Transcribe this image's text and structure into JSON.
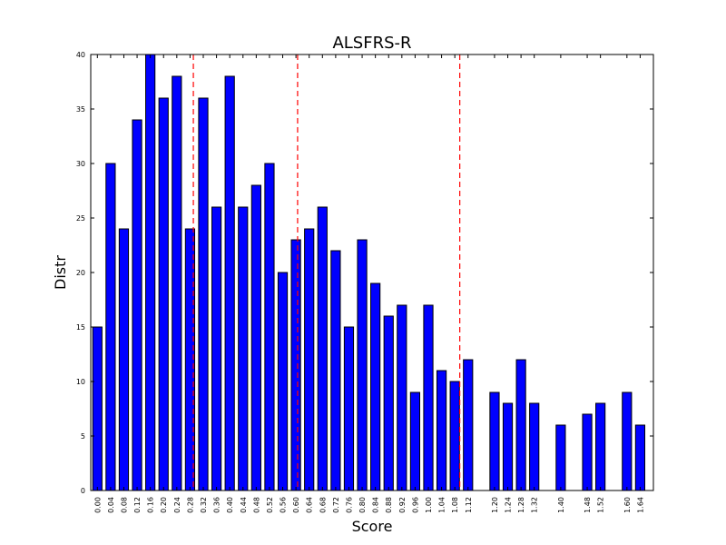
{
  "chart_data": {
    "type": "bar",
    "title": "ALSFRS-R",
    "xlabel": "Score",
    "ylabel": "Distr",
    "ylim": [
      0,
      40
    ],
    "xlim": [
      -0.02,
      1.68
    ],
    "yticks": [
      0,
      5,
      10,
      15,
      20,
      25,
      30,
      35,
      40
    ],
    "bar_color": "#0000ff",
    "threshold_color": "#ff0000",
    "bar_width": 0.028,
    "grid": false,
    "legend": "none",
    "thresholds": [
      0.29,
      0.605,
      1.095
    ],
    "categories": [
      "0.00",
      "0.04",
      "0.08",
      "0.12",
      "0.16",
      "0.20",
      "0.24",
      "0.28",
      "0.32",
      "0.36",
      "0.40",
      "0.44",
      "0.48",
      "0.52",
      "0.56",
      "0.60",
      "0.64",
      "0.68",
      "0.72",
      "0.76",
      "0.80",
      "0.84",
      "0.88",
      "0.92",
      "0.96",
      "1.00",
      "1.04",
      "1.08",
      "1.12",
      "1.20",
      "1.24",
      "1.28",
      "1.32",
      "1.40",
      "1.48",
      "1.52",
      "1.60",
      "1.64"
    ],
    "x": [
      0.0,
      0.04,
      0.08,
      0.12,
      0.16,
      0.2,
      0.24,
      0.28,
      0.32,
      0.36,
      0.4,
      0.44,
      0.48,
      0.52,
      0.56,
      0.6,
      0.64,
      0.68,
      0.72,
      0.76,
      0.8,
      0.84,
      0.88,
      0.92,
      0.96,
      1.0,
      1.04,
      1.08,
      1.12,
      1.2,
      1.24,
      1.28,
      1.32,
      1.4,
      1.48,
      1.52,
      1.6,
      1.64
    ],
    "values": [
      15,
      30,
      24,
      34,
      40,
      36,
      38,
      24,
      36,
      26,
      38,
      26,
      28,
      30,
      20,
      23,
      24,
      26,
      22,
      15,
      23,
      19,
      16,
      17,
      9,
      17,
      11,
      10,
      12,
      9,
      8,
      12,
      8,
      6,
      7,
      8,
      9,
      6
    ]
  }
}
